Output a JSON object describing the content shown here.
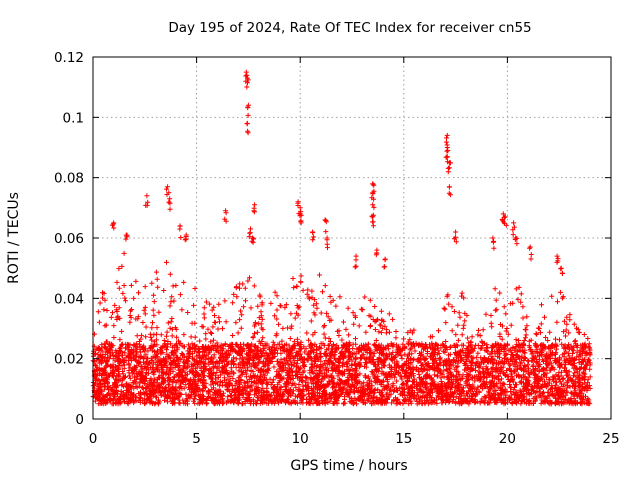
{
  "chart_data": {
    "type": "scatter",
    "title": "Day 195 of 2024, Rate Of TEC Index for receiver cn55",
    "xlabel": "GPS time / hours",
    "ylabel": "ROTI / TECUs",
    "xlim": [
      0,
      25
    ],
    "ylim": [
      0,
      0.12
    ],
    "xticks": [
      "0",
      "5",
      "10",
      "15",
      "20",
      "25"
    ],
    "yticks": [
      "0",
      "0.02",
      "0.04",
      "0.06",
      "0.08",
      "0.1",
      "0.12"
    ],
    "grid": true,
    "marker": "plus",
    "series_color": "#ff0000",
    "series": [
      {
        "name": "ROTI",
        "x_range": [
          0,
          24
        ],
        "baseline_range": [
          0.005,
          0.025
        ],
        "envelope": [
          [
            0.0,
            0.035
          ],
          [
            0.5,
            0.043
          ],
          [
            1.0,
            0.05
          ],
          [
            1.5,
            0.055
          ],
          [
            2.0,
            0.048
          ],
          [
            2.5,
            0.052
          ],
          [
            3.0,
            0.05
          ],
          [
            3.5,
            0.055
          ],
          [
            4.0,
            0.048
          ],
          [
            4.5,
            0.045
          ],
          [
            5.0,
            0.044
          ],
          [
            5.5,
            0.04
          ],
          [
            6.0,
            0.038
          ],
          [
            6.5,
            0.042
          ],
          [
            7.0,
            0.045
          ],
          [
            7.5,
            0.05
          ],
          [
            8.0,
            0.042
          ],
          [
            8.5,
            0.038
          ],
          [
            9.0,
            0.045
          ],
          [
            9.5,
            0.05
          ],
          [
            10.0,
            0.048
          ],
          [
            10.5,
            0.044
          ],
          [
            11.0,
            0.05
          ],
          [
            11.5,
            0.045
          ],
          [
            12.0,
            0.04
          ],
          [
            12.5,
            0.042
          ],
          [
            13.0,
            0.04
          ],
          [
            13.5,
            0.045
          ],
          [
            14.0,
            0.038
          ],
          [
            14.5,
            0.033
          ],
          [
            15.0,
            0.03
          ],
          [
            15.5,
            0.03
          ],
          [
            16.0,
            0.028
          ],
          [
            16.5,
            0.03
          ],
          [
            17.0,
            0.04
          ],
          [
            17.5,
            0.045
          ],
          [
            18.0,
            0.04
          ],
          [
            18.5,
            0.036
          ],
          [
            19.0,
            0.04
          ],
          [
            19.5,
            0.045
          ],
          [
            20.0,
            0.042
          ],
          [
            20.5,
            0.045
          ],
          [
            21.0,
            0.04
          ],
          [
            21.5,
            0.038
          ],
          [
            22.0,
            0.042
          ],
          [
            22.5,
            0.045
          ],
          [
            23.0,
            0.035
          ],
          [
            23.5,
            0.03
          ],
          [
            24.0,
            0.028
          ]
        ],
        "spikes": [
          {
            "x": 1.0,
            "y": 0.065
          },
          {
            "x": 1.6,
            "y": 0.061
          },
          {
            "x": 2.6,
            "y": 0.074
          },
          {
            "x": 3.6,
            "y": 0.077
          },
          {
            "x": 3.7,
            "y": 0.073
          },
          {
            "x": 4.2,
            "y": 0.064
          },
          {
            "x": 4.5,
            "y": 0.061
          },
          {
            "x": 6.4,
            "y": 0.069
          },
          {
            "x": 7.4,
            "y": 0.115
          },
          {
            "x": 7.45,
            "y": 0.113
          },
          {
            "x": 7.5,
            "y": 0.104
          },
          {
            "x": 7.45,
            "y": 0.098
          },
          {
            "x": 7.6,
            "y": 0.063
          },
          {
            "x": 7.7,
            "y": 0.06
          },
          {
            "x": 7.8,
            "y": 0.071
          },
          {
            "x": 9.9,
            "y": 0.072
          },
          {
            "x": 10.0,
            "y": 0.07
          },
          {
            "x": 10.0,
            "y": 0.068
          },
          {
            "x": 10.6,
            "y": 0.062
          },
          {
            "x": 11.2,
            "y": 0.066
          },
          {
            "x": 11.3,
            "y": 0.06
          },
          {
            "x": 12.7,
            "y": 0.054
          },
          {
            "x": 13.5,
            "y": 0.078
          },
          {
            "x": 13.5,
            "y": 0.075
          },
          {
            "x": 13.5,
            "y": 0.071
          },
          {
            "x": 13.5,
            "y": 0.067
          },
          {
            "x": 13.7,
            "y": 0.056
          },
          {
            "x": 14.1,
            "y": 0.053
          },
          {
            "x": 17.1,
            "y": 0.094
          },
          {
            "x": 17.1,
            "y": 0.09
          },
          {
            "x": 17.1,
            "y": 0.087
          },
          {
            "x": 17.2,
            "y": 0.085
          },
          {
            "x": 17.2,
            "y": 0.077
          },
          {
            "x": 17.5,
            "y": 0.062
          },
          {
            "x": 19.3,
            "y": 0.06
          },
          {
            "x": 19.8,
            "y": 0.068
          },
          {
            "x": 19.9,
            "y": 0.067
          },
          {
            "x": 20.3,
            "y": 0.065
          },
          {
            "x": 20.4,
            "y": 0.06
          },
          {
            "x": 21.1,
            "y": 0.057
          },
          {
            "x": 22.4,
            "y": 0.054
          },
          {
            "x": 22.6,
            "y": 0.05
          }
        ]
      }
    ]
  }
}
